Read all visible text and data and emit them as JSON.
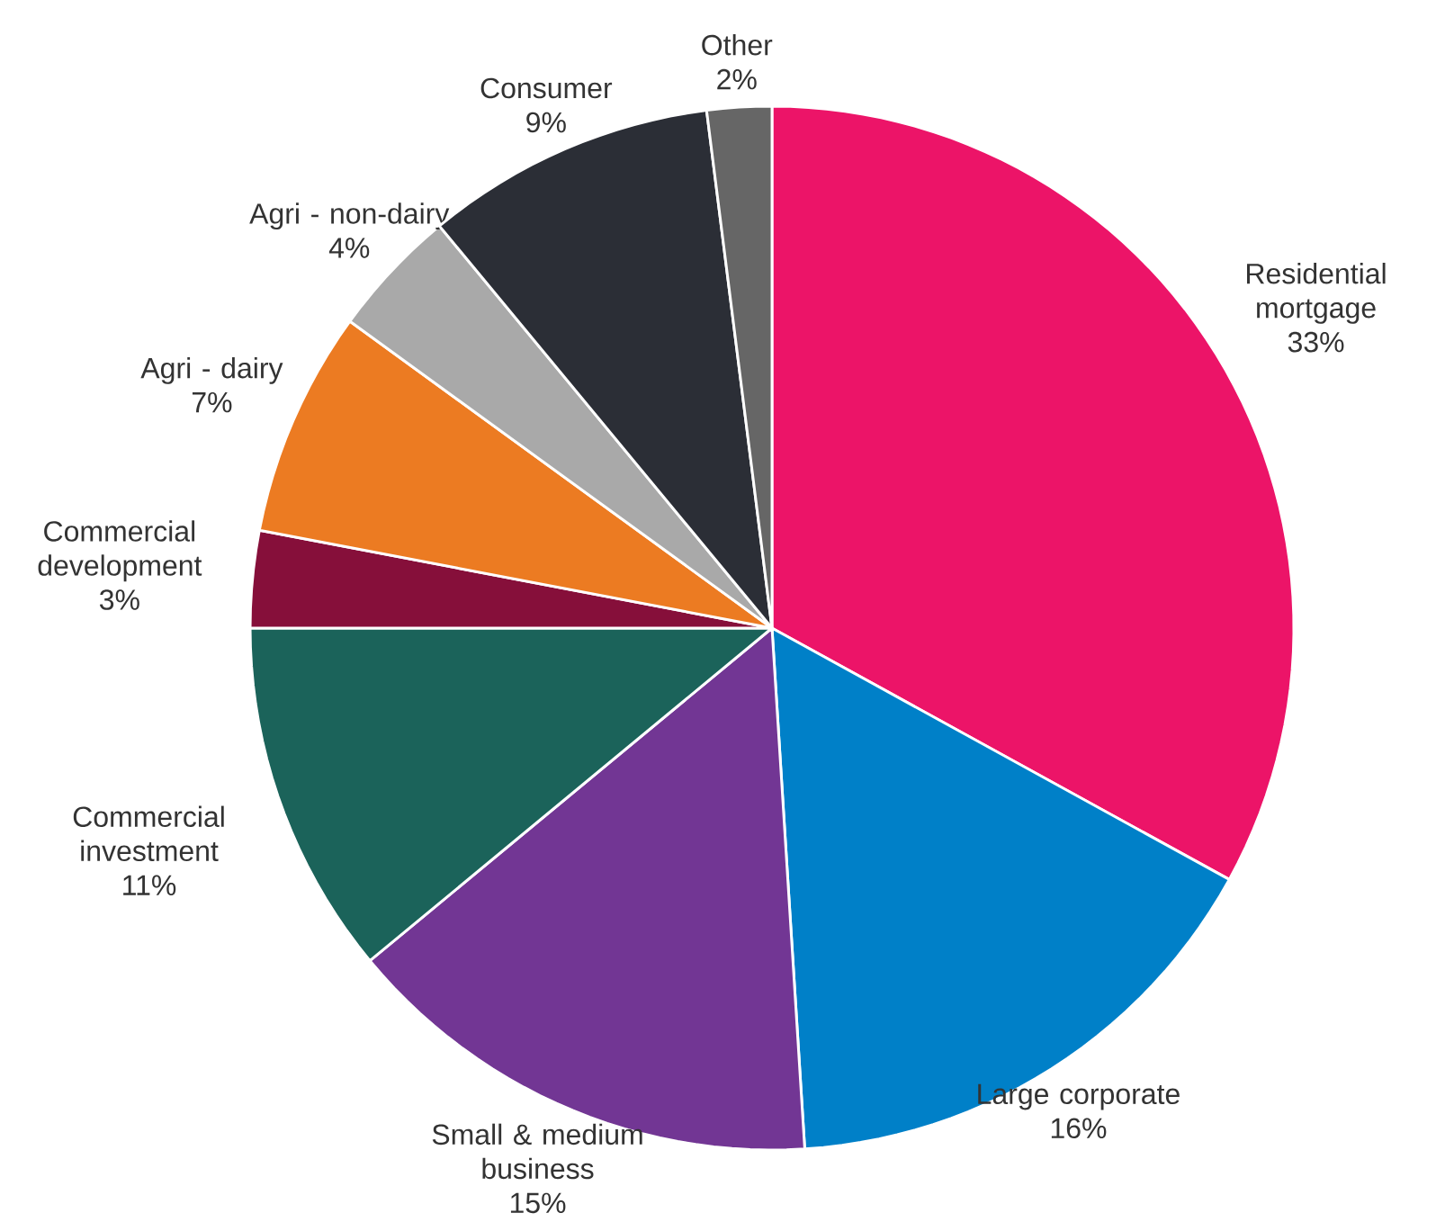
{
  "chart_data": {
    "type": "pie",
    "categories": [
      "Residential mortgage",
      "Large corporate",
      "Small & medium business",
      "Commercial investment",
      "Commercial development",
      "Agri - dairy",
      "Agri - non-dairy",
      "Consumer",
      "Other"
    ],
    "values": [
      33,
      16,
      15,
      11,
      3,
      7,
      4,
      9,
      2
    ],
    "colors": [
      "#ec1468",
      "#0080c8",
      "#723694",
      "#1b635a",
      "#860f3a",
      "#ec7b22",
      "#a9a9a9",
      "#2b2e36",
      "#666666"
    ],
    "value_labels": [
      "33%",
      "16%",
      "15%",
      "11%",
      "3%",
      "7%",
      "4%",
      "9%",
      "2%"
    ]
  }
}
